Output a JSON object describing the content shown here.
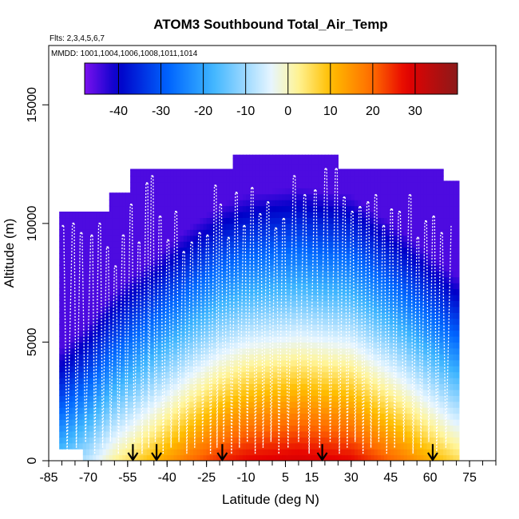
{
  "chart_data": {
    "type": "heatmap",
    "title": "ATOM3 Southbound Total_Air_Temp",
    "flights_label": "Flts: 2,3,4,5,6,7",
    "dates_label": "MMDD: 1001,1004,1006,1008,1011,1014",
    "xlabel": "Latitude (deg N)",
    "ylabel": "Altitude (m)",
    "xlim": [
      -85,
      85
    ],
    "ylim": [
      0,
      17500
    ],
    "x_ticks": [
      "-85",
      "-70",
      "-55",
      "-40",
      "-25",
      "-10",
      "5",
      "15",
      "30",
      "45",
      "60",
      "75"
    ],
    "x_tick_values": [
      -85,
      -70,
      -55,
      -40,
      -25,
      -10,
      5,
      15,
      30,
      45,
      60,
      75
    ],
    "y_ticks": [
      "0",
      "5000",
      "10000",
      "15000"
    ],
    "y_tick_values": [
      0,
      5000,
      10000,
      15000
    ],
    "colorbar": {
      "min": -48,
      "max": 40,
      "tick_labels": [
        "-40",
        "-30",
        "-20",
        "-10",
        "0",
        "10",
        "20",
        "30"
      ],
      "tick_values": [
        -40,
        -30,
        -20,
        -10,
        0,
        10,
        20,
        30
      ],
      "colors": [
        "#7b11ef",
        "#0000c8",
        "#0066ff",
        "#3cb4ff",
        "#e6f5ff",
        "#fff59b",
        "#ffbe00",
        "#ff6a00",
        "#e60000",
        "#8b1a1a"
      ],
      "color_stops": [
        -48,
        -40,
        -28,
        -18,
        -4,
        2,
        10,
        20,
        28,
        40
      ]
    },
    "surface_temp_by_lat": {
      "lat": [
        -80,
        -70,
        -60,
        -50,
        -40,
        -30,
        -20,
        -10,
        0,
        10,
        20,
        30,
        40,
        50,
        60,
        70
      ],
      "temp": [
        -14,
        -7,
        2,
        8,
        14,
        20,
        25,
        28,
        29,
        30,
        29,
        28,
        23,
        18,
        12,
        6
      ]
    },
    "lapse_rate_c_per_km": 6.5,
    "tropopause_temp_c": -45,
    "profile_coverage": [
      {
        "lat_start": -81,
        "lat_end": -72,
        "alt_bottom": 500,
        "alt_top": 10500
      },
      {
        "lat_start": -72,
        "lat_end": -62,
        "alt_bottom": 0,
        "alt_top": 10500
      },
      {
        "lat_start": -62,
        "lat_end": -54,
        "alt_bottom": 0,
        "alt_top": 11300
      },
      {
        "lat_start": -54,
        "lat_end": -45,
        "alt_bottom": 0,
        "alt_top": 12300
      },
      {
        "lat_start": -45,
        "lat_end": -30,
        "alt_bottom": 0,
        "alt_top": 12300
      },
      {
        "lat_start": -30,
        "lat_end": -15,
        "alt_bottom": 0,
        "alt_top": 12300
      },
      {
        "lat_start": -15,
        "lat_end": 25,
        "alt_bottom": 0,
        "alt_top": 12900
      },
      {
        "lat_start": 25,
        "lat_end": 45,
        "alt_bottom": 0,
        "alt_top": 12300
      },
      {
        "lat_start": 45,
        "lat_end": 65,
        "alt_bottom": 0,
        "alt_top": 12300
      },
      {
        "lat_start": 65,
        "lat_end": 71,
        "alt_bottom": 0,
        "alt_top": 11800
      }
    ],
    "flight_track_lat": [
      -80,
      -76,
      -73,
      -69,
      -66,
      -63,
      -60,
      -57,
      -54,
      -51,
      -48,
      -46,
      -43,
      -40,
      -37,
      -34,
      -31,
      -28,
      -25,
      -22,
      -20,
      -17,
      -14,
      -11,
      -8,
      -5,
      -2,
      1,
      4,
      8,
      12,
      16,
      20,
      24,
      27,
      30,
      33,
      36,
      39,
      42,
      45,
      48,
      52,
      55,
      58,
      61,
      64,
      68
    ],
    "flight_track_top_alt": [
      9900,
      10000,
      9600,
      9500,
      10000,
      9000,
      8200,
      9500,
      10800,
      9200,
      11700,
      12000,
      10300,
      9300,
      10500,
      8800,
      9200,
      9600,
      9500,
      11600,
      10800,
      9400,
      11300,
      9900,
      11500,
      10400,
      10900,
      9800,
      10200,
      12000,
      11200,
      11400,
      12300,
      12300,
      11100,
      10500,
      10700,
      10900,
      11200,
      9900,
      10600,
      10500,
      11200,
      9400,
      10100,
      10300,
      9600,
      9900
    ],
    "arrow_lats": [
      -53,
      -44,
      -19,
      19,
      61
    ]
  }
}
